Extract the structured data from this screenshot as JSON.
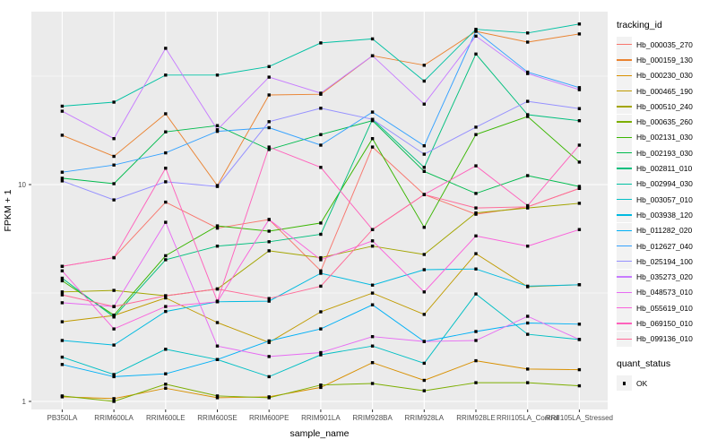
{
  "figure": {
    "ylabel": "FPKM + 1",
    "xlabel": "sample_name",
    "legend": {
      "color_title": "tracking_id",
      "shape_title": "quant_status",
      "shape_label": "OK"
    }
  },
  "chart_data": {
    "type": "line",
    "title": "",
    "xlabel": "sample_name",
    "ylabel": "FPKM + 1",
    "y_scale": "log10",
    "ylim": [
      0.92,
      63
    ],
    "y_tick_labels": [
      "10",
      "1"
    ],
    "y_tick_values": [
      10,
      1
    ],
    "y_minor_gridline_values": [
      3.1623,
      31.623
    ],
    "grid": true,
    "legend_position": "right",
    "point_marker": "black-square",
    "quant_status_all": "OK",
    "categories": [
      "PB350LA",
      "RRIM600LA",
      "RRIM600LE",
      "RRIM600SE",
      "RRIM600PE",
      "RRIM901LA",
      "RRIM928BA",
      "RRIM928LA",
      "RRIM928LE",
      "RRII105LA_Control",
      "RRII105LA_Stressed"
    ],
    "series": [
      {
        "name": "Hb_000035_270",
        "color": "#F8766D",
        "values": [
          4.2,
          4.6,
          8.3,
          6.3,
          6.9,
          4.0,
          14.9,
          9.0,
          7.3,
          7.9,
          9.6
        ]
      },
      {
        "name": "Hb_000159_130",
        "color": "#EA8331",
        "values": [
          16.9,
          13.5,
          21.2,
          9.9,
          25.9,
          26.1,
          39.3,
          35.5,
          50.9,
          45.4,
          49.5
        ]
      },
      {
        "name": "Hb_000230_030",
        "color": "#D89000",
        "values": [
          1.05,
          1.03,
          1.15,
          1.04,
          1.05,
          1.16,
          1.51,
          1.25,
          1.54,
          1.41,
          1.4
        ]
      },
      {
        "name": "Hb_000465_190",
        "color": "#C09B00",
        "values": [
          2.33,
          2.49,
          3.0,
          2.31,
          1.87,
          2.59,
          3.16,
          2.52,
          4.8,
          3.38,
          3.45
        ]
      },
      {
        "name": "Hb_000510_240",
        "color": "#A3A500",
        "values": [
          3.2,
          3.25,
          3.07,
          3.3,
          4.95,
          4.6,
          5.2,
          4.76,
          7.4,
          7.8,
          8.2
        ]
      },
      {
        "name": "Hb_000635_260",
        "color": "#7CAE00",
        "values": [
          1.06,
          1.0,
          1.2,
          1.06,
          1.04,
          1.19,
          1.21,
          1.12,
          1.22,
          1.22,
          1.18
        ]
      },
      {
        "name": "Hb_002131_030",
        "color": "#39B600",
        "values": [
          3.6,
          2.5,
          4.7,
          6.45,
          6.1,
          6.65,
          16.3,
          6.35,
          17.0,
          20.6,
          12.7
        ]
      },
      {
        "name": "Hb_002193_030",
        "color": "#00BB4E",
        "values": [
          10.7,
          10.1,
          17.5,
          18.7,
          14.5,
          17.0,
          19.7,
          11.5,
          9.1,
          11.0,
          9.8
        ]
      },
      {
        "name": "Hb_002811_010",
        "color": "#00BF7D",
        "values": [
          3.7,
          2.45,
          4.5,
          5.2,
          5.45,
          5.9,
          20.0,
          12.0,
          40.0,
          21.0,
          19.7
        ]
      },
      {
        "name": "Hb_002994_030",
        "color": "#00C1A3",
        "values": [
          23.0,
          24.0,
          32.0,
          32.0,
          35.0,
          45.0,
          47.0,
          30.0,
          52.0,
          50.0,
          55.0
        ]
      },
      {
        "name": "Hb_003057_010",
        "color": "#00BFC4",
        "values": [
          1.6,
          1.33,
          1.74,
          1.56,
          1.3,
          1.64,
          1.8,
          1.5,
          3.13,
          2.04,
          1.93
        ]
      },
      {
        "name": "Hb_003938_120",
        "color": "#00BAE0",
        "values": [
          1.91,
          1.82,
          2.6,
          2.88,
          2.9,
          3.9,
          3.44,
          4.05,
          4.08,
          3.4,
          3.45
        ]
      },
      {
        "name": "Hb_011282_020",
        "color": "#00B0F6",
        "values": [
          1.48,
          1.3,
          1.34,
          1.56,
          1.9,
          2.16,
          2.79,
          1.89,
          2.1,
          2.3,
          2.27
        ]
      },
      {
        "name": "Hb_012627_040",
        "color": "#35A2FF",
        "values": [
          11.4,
          12.3,
          14.0,
          17.6,
          18.3,
          15.2,
          21.6,
          15.1,
          51.0,
          33.0,
          28.0
        ]
      },
      {
        "name": "Hb_025194_100",
        "color": "#9590FF",
        "values": [
          10.4,
          8.5,
          10.3,
          9.8,
          19.5,
          22.5,
          20.0,
          13.8,
          18.4,
          24.2,
          22.4
        ]
      },
      {
        "name": "Hb_035273_020",
        "color": "#C77CFF",
        "values": [
          21.8,
          16.3,
          42.5,
          17.9,
          31.3,
          26.4,
          39.3,
          23.5,
          48.4,
          32.5,
          27.4
        ]
      },
      {
        "name": "Hb_048573_010",
        "color": "#E76BF3",
        "values": [
          2.85,
          2.74,
          6.7,
          1.8,
          1.61,
          1.68,
          1.99,
          1.89,
          1.91,
          2.47,
          1.93
        ]
      },
      {
        "name": "Hb_055619_010",
        "color": "#FA62DB",
        "values": [
          4.0,
          2.16,
          2.74,
          2.88,
          6.9,
          4.5,
          5.5,
          3.2,
          5.8,
          5.2,
          6.2
        ]
      },
      {
        "name": "Hb_069150_010",
        "color": "#FF62BC",
        "values": [
          4.2,
          4.6,
          11.9,
          2.9,
          14.9,
          12.0,
          6.2,
          9.0,
          12.2,
          8.0,
          15.2
        ]
      },
      {
        "name": "Hb_099136_010",
        "color": "#FF6A98",
        "values": [
          3.1,
          2.74,
          3.07,
          3.3,
          2.98,
          3.4,
          6.2,
          9.0,
          7.8,
          7.9,
          9.6
        ]
      }
    ],
    "panel_bg": "#EBEBEB",
    "grid_color": "#FFFFFF",
    "tick_text_color": "#4D4D4D",
    "axis_title_color": "#000000"
  }
}
